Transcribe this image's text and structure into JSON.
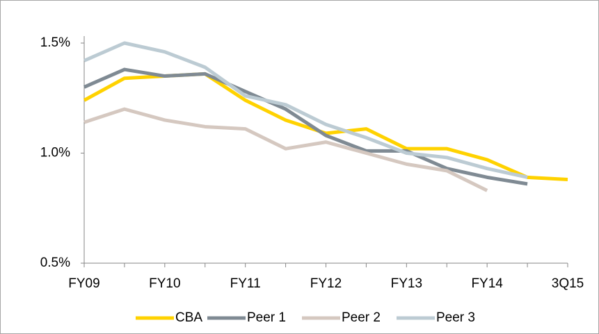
{
  "chart_data": {
    "type": "line",
    "categories": [
      "FY09",
      null,
      "FY10",
      null,
      "FY11",
      null,
      "FY12",
      null,
      "FY13",
      null,
      "FY14",
      null,
      "3Q15"
    ],
    "series": [
      {
        "name": "CBA",
        "color": "#ffd200",
        "values": [
          1.24,
          1.34,
          1.35,
          1.36,
          1.24,
          1.15,
          1.09,
          1.11,
          1.02,
          1.02,
          0.97,
          0.89,
          0.88
        ]
      },
      {
        "name": "Peer 1",
        "color": "#7f8a93",
        "values": [
          1.3,
          1.38,
          1.35,
          1.36,
          1.28,
          1.2,
          1.08,
          1.01,
          1.01,
          0.93,
          0.89,
          0.86,
          null
        ]
      },
      {
        "name": "Peer 2",
        "color": "#d5c8c0",
        "values": [
          1.14,
          1.2,
          1.15,
          1.12,
          1.11,
          1.02,
          1.05,
          1.0,
          0.95,
          0.92,
          0.83,
          null,
          null
        ]
      },
      {
        "name": "Peer 3",
        "color": "#bccbd3",
        "values": [
          1.42,
          1.5,
          1.46,
          1.39,
          1.26,
          1.22,
          1.13,
          1.07,
          1.0,
          0.98,
          0.93,
          0.89,
          null
        ]
      }
    ],
    "ylim": [
      0.5,
      1.5
    ],
    "yticks": [
      {
        "value": 0.5,
        "label": "0.5%"
      },
      {
        "value": 1.0,
        "label": "1.0%"
      },
      {
        "value": 1.5,
        "label": "1.5%"
      }
    ],
    "grid": false,
    "legend": "bottom"
  }
}
